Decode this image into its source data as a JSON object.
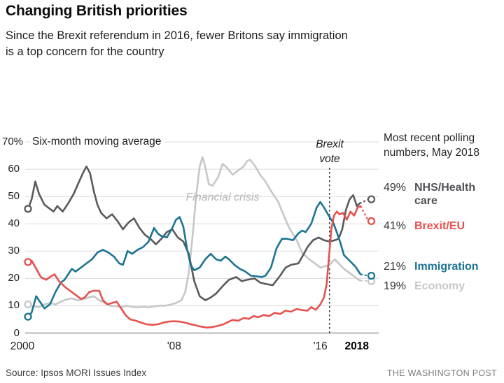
{
  "chart_data": {
    "type": "line",
    "title": "Changing British priorities",
    "subtitle_lines": [
      "Since the Brexit referendum in 2016, fewer Britons say immigration",
      "is a top concern for the country"
    ],
    "note": "Six-month moving average",
    "legend_title": "Most recent polling numbers, May 2018",
    "x_axis": {
      "range": [
        2000,
        2018.8
      ],
      "ticks": [
        {
          "year": 2000,
          "label": "2000",
          "bold": false
        },
        {
          "year": 2008,
          "label": "'08",
          "bold": false
        },
        {
          "year": 2016,
          "label": "'16",
          "bold": false
        },
        {
          "year": 2018,
          "label": "2018",
          "bold": true
        }
      ]
    },
    "y_axis": {
      "range": [
        0,
        70
      ],
      "ticks": [
        0,
        10,
        20,
        30,
        40,
        50,
        60,
        70
      ],
      "top_label": "70%",
      "grid": true
    },
    "annotations": {
      "financial_crisis": "Financial crisis",
      "brexit_vote": "Brexit vote",
      "brexit_vote_year": 2016.5
    },
    "legend_position": "right",
    "series": [
      {
        "id": "nhs",
        "name": "NHS/Health care",
        "pct": "49%",
        "end_value": 49,
        "color": "#595a5c",
        "points": [
          [
            2000,
            45.5
          ],
          [
            2000.2,
            49
          ],
          [
            2000.4,
            55.5
          ],
          [
            2000.6,
            51
          ],
          [
            2000.9,
            47
          ],
          [
            2001.1,
            46
          ],
          [
            2001.4,
            44.5
          ],
          [
            2001.6,
            46.5
          ],
          [
            2001.9,
            44.5
          ],
          [
            2002.2,
            47.5
          ],
          [
            2002.5,
            51
          ],
          [
            2002.8,
            55.5
          ],
          [
            2003,
            58.5
          ],
          [
            2003.2,
            61
          ],
          [
            2003.4,
            58.5
          ],
          [
            2003.6,
            52
          ],
          [
            2003.8,
            47
          ],
          [
            2004,
            44
          ],
          [
            2004.3,
            42
          ],
          [
            2004.6,
            43.5
          ],
          [
            2004.9,
            41
          ],
          [
            2005.2,
            38
          ],
          [
            2005.5,
            40.5
          ],
          [
            2005.8,
            42
          ],
          [
            2006.1,
            38.5
          ],
          [
            2006.4,
            36
          ],
          [
            2006.7,
            34.5
          ],
          [
            2007,
            32.5
          ],
          [
            2007.3,
            34.5
          ],
          [
            2007.6,
            37
          ],
          [
            2007.9,
            38
          ],
          [
            2008.2,
            35
          ],
          [
            2008.5,
            33.5
          ],
          [
            2008.8,
            29
          ],
          [
            2009.1,
            19
          ],
          [
            2009.4,
            13.5
          ],
          [
            2009.7,
            12
          ],
          [
            2010,
            13
          ],
          [
            2010.3,
            14.5
          ],
          [
            2010.7,
            17.5
          ],
          [
            2011,
            19.5
          ],
          [
            2011.4,
            20.5
          ],
          [
            2011.7,
            19
          ],
          [
            2012,
            19.5
          ],
          [
            2012.4,
            20
          ],
          [
            2012.7,
            18.5
          ],
          [
            2013,
            18
          ],
          [
            2013.4,
            17.5
          ],
          [
            2013.8,
            21
          ],
          [
            2014.1,
            24
          ],
          [
            2014.4,
            25
          ],
          [
            2014.8,
            25.5
          ],
          [
            2015.1,
            29
          ],
          [
            2015.3,
            31.5
          ],
          [
            2015.6,
            34
          ],
          [
            2015.9,
            35
          ],
          [
            2016.2,
            34
          ],
          [
            2016.5,
            33.5
          ],
          [
            2016.8,
            34
          ],
          [
            2017,
            34.5
          ],
          [
            2017.2,
            38
          ],
          [
            2017.4,
            45
          ],
          [
            2017.6,
            49
          ],
          [
            2017.8,
            50.5
          ],
          [
            2018,
            46.5
          ],
          [
            2018.15,
            47.5
          ]
        ]
      },
      {
        "id": "brexit",
        "name": "Brexit/EU",
        "pct": "41%",
        "end_value": 41,
        "color": "#e5514e",
        "points": [
          [
            2000,
            26
          ],
          [
            2000.2,
            26.5
          ],
          [
            2000.5,
            23
          ],
          [
            2000.7,
            20.5
          ],
          [
            2001,
            19.5
          ],
          [
            2001.2,
            20.5
          ],
          [
            2001.45,
            21.5
          ],
          [
            2001.7,
            19
          ],
          [
            2002,
            17
          ],
          [
            2002.3,
            15.5
          ],
          [
            2002.6,
            14
          ],
          [
            2002.9,
            12.5
          ],
          [
            2003.1,
            13
          ],
          [
            2003.35,
            15
          ],
          [
            2003.6,
            15.5
          ],
          [
            2003.9,
            15.5
          ],
          [
            2004.1,
            12
          ],
          [
            2004.35,
            10.5
          ],
          [
            2004.6,
            11
          ],
          [
            2004.85,
            11.5
          ],
          [
            2005.1,
            9
          ],
          [
            2005.35,
            6.5
          ],
          [
            2005.6,
            5
          ],
          [
            2005.9,
            4.5
          ],
          [
            2006.2,
            3.8
          ],
          [
            2006.5,
            3.2
          ],
          [
            2006.8,
            3
          ],
          [
            2007.1,
            3.2
          ],
          [
            2007.4,
            3.8
          ],
          [
            2007.7,
            4.2
          ],
          [
            2008,
            4.3
          ],
          [
            2008.3,
            4.2
          ],
          [
            2008.6,
            3.8
          ],
          [
            2008.9,
            3.2
          ],
          [
            2009.2,
            2.8
          ],
          [
            2009.5,
            2.3
          ],
          [
            2009.8,
            2
          ],
          [
            2010.1,
            2.2
          ],
          [
            2010.4,
            2.6
          ],
          [
            2010.7,
            3.2
          ],
          [
            2011,
            4.2
          ],
          [
            2011.2,
            4.8
          ],
          [
            2011.5,
            4.5
          ],
          [
            2011.8,
            5.5
          ],
          [
            2012.1,
            5.2
          ],
          [
            2012.35,
            6.2
          ],
          [
            2012.6,
            5.8
          ],
          [
            2012.9,
            6.6
          ],
          [
            2013.2,
            6.2
          ],
          [
            2013.5,
            7.4
          ],
          [
            2013.8,
            7
          ],
          [
            2014.1,
            8.2
          ],
          [
            2014.4,
            7.8
          ],
          [
            2014.7,
            8.8
          ],
          [
            2015,
            8.4
          ],
          [
            2015.3,
            8.2
          ],
          [
            2015.5,
            9.5
          ],
          [
            2015.75,
            8.5
          ],
          [
            2016,
            10.5
          ],
          [
            2016.2,
            13
          ],
          [
            2016.35,
            18
          ],
          [
            2016.5,
            30
          ],
          [
            2016.6,
            38
          ],
          [
            2016.75,
            43
          ],
          [
            2016.9,
            44.5
          ],
          [
            2017.05,
            43.5
          ],
          [
            2017.25,
            44
          ],
          [
            2017.45,
            41.5
          ],
          [
            2017.65,
            44.5
          ],
          [
            2017.85,
            43
          ],
          [
            2018.05,
            46
          ],
          [
            2018.2,
            46.5
          ]
        ]
      },
      {
        "id": "immigration",
        "name": "Immigration",
        "pct": "21%",
        "end_value": 21,
        "color": "#1c7493",
        "points": [
          [
            2000,
            6
          ],
          [
            2000.2,
            7.5
          ],
          [
            2000.45,
            13.5
          ],
          [
            2000.7,
            11
          ],
          [
            2000.9,
            9
          ],
          [
            2001.2,
            10.5
          ],
          [
            2001.5,
            15
          ],
          [
            2001.8,
            18.5
          ],
          [
            2002,
            19.5
          ],
          [
            2002.2,
            21.5
          ],
          [
            2002.4,
            23.5
          ],
          [
            2002.6,
            22.5
          ],
          [
            2002.9,
            24
          ],
          [
            2003.2,
            25.5
          ],
          [
            2003.5,
            27
          ],
          [
            2003.8,
            29.5
          ],
          [
            2004.1,
            30.5
          ],
          [
            2004.4,
            29.5
          ],
          [
            2004.7,
            28
          ],
          [
            2005,
            25.5
          ],
          [
            2005.2,
            25
          ],
          [
            2005.45,
            30
          ],
          [
            2005.7,
            29
          ],
          [
            2006,
            30.5
          ],
          [
            2006.3,
            31.5
          ],
          [
            2006.6,
            33.5
          ],
          [
            2006.9,
            38.5
          ],
          [
            2007.1,
            36.5
          ],
          [
            2007.3,
            35.5
          ],
          [
            2007.6,
            35
          ],
          [
            2007.9,
            38.5
          ],
          [
            2008.1,
            41.5
          ],
          [
            2008.3,
            42.5
          ],
          [
            2008.5,
            39
          ],
          [
            2008.7,
            31
          ],
          [
            2008.9,
            25
          ],
          [
            2009.1,
            23
          ],
          [
            2009.4,
            24
          ],
          [
            2009.7,
            27
          ],
          [
            2010,
            29
          ],
          [
            2010.3,
            27
          ],
          [
            2010.55,
            26.5
          ],
          [
            2010.8,
            28
          ],
          [
            2011,
            27
          ],
          [
            2011.3,
            25
          ],
          [
            2011.6,
            23.5
          ],
          [
            2011.9,
            22.5
          ],
          [
            2012.2,
            21
          ],
          [
            2012.5,
            20.8
          ],
          [
            2012.8,
            20.5
          ],
          [
            2013,
            21
          ],
          [
            2013.3,
            24
          ],
          [
            2013.6,
            31
          ],
          [
            2013.9,
            34.5
          ],
          [
            2014.2,
            34.5
          ],
          [
            2014.5,
            34
          ],
          [
            2014.8,
            36.5
          ],
          [
            2015,
            37.5
          ],
          [
            2015.2,
            37
          ],
          [
            2015.5,
            40
          ],
          [
            2015.8,
            46
          ],
          [
            2016,
            48
          ],
          [
            2016.2,
            46
          ],
          [
            2016.5,
            42.5
          ],
          [
            2016.7,
            40.5
          ],
          [
            2016.9,
            37
          ],
          [
            2017.1,
            33
          ],
          [
            2017.3,
            28.5
          ],
          [
            2017.6,
            26.5
          ],
          [
            2017.9,
            24.5
          ],
          [
            2018.1,
            22.5
          ],
          [
            2018.2,
            21.5
          ]
        ]
      },
      {
        "id": "economy",
        "name": "Economy",
        "pct": "19%",
        "end_value": 19,
        "color": "#c6c7c9",
        "points": [
          [
            2000,
            10.5
          ],
          [
            2000.3,
            9.8
          ],
          [
            2000.6,
            9.5
          ],
          [
            2000.9,
            10.5
          ],
          [
            2001.2,
            11
          ],
          [
            2001.5,
            10.5
          ],
          [
            2001.8,
            11.5
          ],
          [
            2002.1,
            12.3
          ],
          [
            2002.4,
            12.7
          ],
          [
            2002.7,
            12
          ],
          [
            2003,
            12.3
          ],
          [
            2003.3,
            13
          ],
          [
            2003.6,
            13.5
          ],
          [
            2003.9,
            12
          ],
          [
            2004.2,
            11
          ],
          [
            2004.5,
            10
          ],
          [
            2004.8,
            9.8
          ],
          [
            2005.1,
            9.5
          ],
          [
            2005.4,
            10
          ],
          [
            2005.7,
            9.6
          ],
          [
            2006,
            9.4
          ],
          [
            2006.3,
            9.6
          ],
          [
            2006.6,
            9.4
          ],
          [
            2006.9,
            9.8
          ],
          [
            2007.2,
            10
          ],
          [
            2007.5,
            10
          ],
          [
            2007.8,
            10.4
          ],
          [
            2008.1,
            11
          ],
          [
            2008.4,
            12
          ],
          [
            2008.6,
            15
          ],
          [
            2008.8,
            22
          ],
          [
            2009,
            35
          ],
          [
            2009.2,
            50
          ],
          [
            2009.4,
            61
          ],
          [
            2009.55,
            64.5
          ],
          [
            2009.7,
            61
          ],
          [
            2009.9,
            54.5
          ],
          [
            2010.1,
            54
          ],
          [
            2010.4,
            57
          ],
          [
            2010.65,
            62
          ],
          [
            2010.9,
            60.5
          ],
          [
            2011.2,
            58
          ],
          [
            2011.5,
            59.5
          ],
          [
            2011.8,
            61
          ],
          [
            2012,
            63
          ],
          [
            2012.15,
            63.5
          ],
          [
            2012.4,
            61.5
          ],
          [
            2012.7,
            58
          ],
          [
            2013,
            55.5
          ],
          [
            2013.3,
            52
          ],
          [
            2013.7,
            48
          ],
          [
            2014,
            43
          ],
          [
            2014.3,
            38.5
          ],
          [
            2014.7,
            34
          ],
          [
            2015,
            29.5
          ],
          [
            2015.3,
            27.5
          ],
          [
            2015.7,
            25.5
          ],
          [
            2016,
            24
          ],
          [
            2016.3,
            24.5
          ],
          [
            2016.5,
            25
          ],
          [
            2016.8,
            27
          ],
          [
            2017,
            25.5
          ],
          [
            2017.3,
            23.5
          ],
          [
            2017.6,
            22
          ],
          [
            2017.9,
            20.5
          ],
          [
            2018.1,
            19.5
          ],
          [
            2018.2,
            19.2
          ]
        ]
      }
    ],
    "source": "Source: Ipsos MORI Issues Index",
    "credit": "THE WASHINGTON POST"
  }
}
